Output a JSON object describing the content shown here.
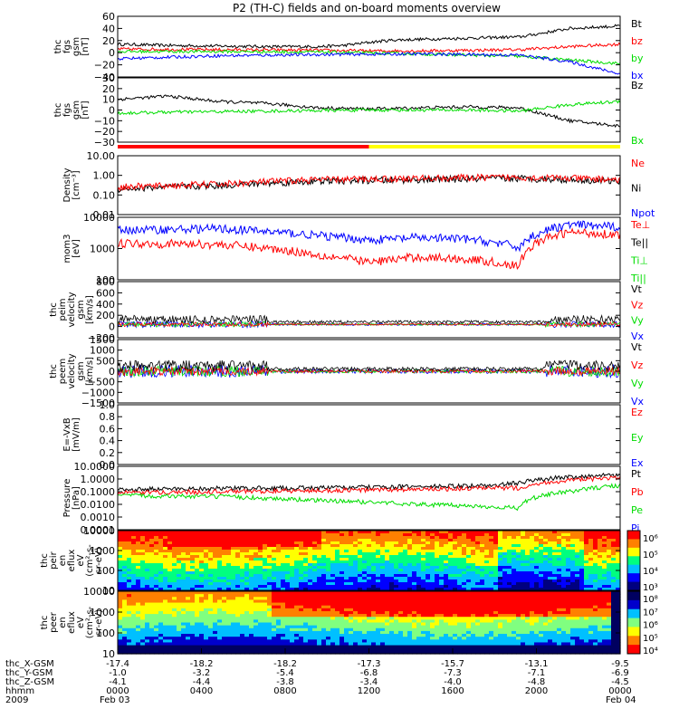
{
  "title": "P2 (TH-C) fields and on-board moments overview",
  "colors": {
    "black": "#000000",
    "red": "#ff0000",
    "green": "#00dd00",
    "blue": "#0000ff",
    "yellow": "#ffff00"
  },
  "chart_data": [
    {
      "id": "fgs-gsm",
      "type": "line",
      "ylabel": [
        "thc",
        "fgs",
        "gsm",
        "[nT]"
      ],
      "yticks": [
        "60",
        "40",
        "20",
        "0",
        "−20",
        "−40"
      ],
      "ylim": [
        -40,
        60
      ],
      "legend": [
        {
          "text": "Bt",
          "color": "#000000"
        },
        {
          "text": "bz",
          "color": "#ff0000"
        },
        {
          "text": "by",
          "color": "#00dd00"
        },
        {
          "text": "bx",
          "color": "#0000ff"
        }
      ],
      "series": [
        {
          "name": "Bt",
          "color": "#000000",
          "x": [
            0,
            0.1,
            0.2,
            0.3,
            0.4,
            0.45,
            0.5,
            0.55,
            0.6,
            0.7,
            0.8,
            0.85,
            0.9,
            1.0
          ],
          "y": [
            14,
            12,
            11,
            10,
            10,
            12,
            17,
            21,
            22,
            24,
            26,
            33,
            40,
            44
          ]
        },
        {
          "name": "bz",
          "color": "#ff0000",
          "x": [
            0,
            0.2,
            0.4,
            0.5,
            0.6,
            0.7,
            0.8,
            0.9,
            1.0
          ],
          "y": [
            6,
            5,
            4,
            3,
            3,
            4,
            5,
            10,
            14
          ]
        },
        {
          "name": "by",
          "color": "#00dd00",
          "x": [
            0,
            0.2,
            0.4,
            0.6,
            0.7,
            0.8,
            0.9,
            1.0
          ],
          "y": [
            2,
            2,
            1,
            -2,
            -4,
            -6,
            -12,
            -18
          ]
        },
        {
          "name": "bx",
          "color": "#0000ff",
          "x": [
            0,
            0.2,
            0.4,
            0.6,
            0.8,
            0.9,
            1.0
          ],
          "y": [
            -10,
            -5,
            -3,
            -2,
            -4,
            -15,
            -35
          ]
        }
      ]
    },
    {
      "id": "fgs-sm",
      "type": "line",
      "ylabel": [
        "thc",
        "fgs",
        "gsm",
        "[nT]"
      ],
      "yticks": [
        "30",
        "20",
        "10",
        "0",
        "−10",
        "−20",
        "−30"
      ],
      "ylim": [
        -30,
        30
      ],
      "legend": [
        {
          "text": "Bz",
          "color": "#000000"
        },
        {
          "text": "Bx",
          "color": "#00dd00"
        }
      ],
      "series": [
        {
          "name": "Bz",
          "color": "#000000",
          "x": [
            0,
            0.1,
            0.2,
            0.3,
            0.4,
            0.5,
            0.7,
            0.8,
            0.9,
            1.0
          ],
          "y": [
            10,
            13,
            8,
            6,
            2,
            1,
            3,
            2,
            -10,
            -15
          ]
        },
        {
          "name": "Bx",
          "color": "#00dd00",
          "x": [
            0,
            0.1,
            0.3,
            0.5,
            0.7,
            0.8,
            0.9,
            1.0
          ],
          "y": [
            -3,
            -2,
            -1,
            0,
            0,
            -1,
            5,
            8
          ]
        }
      ]
    },
    {
      "id": "density",
      "type": "line",
      "ylabel": [
        "Density",
        "[cm⁻³]"
      ],
      "yticks": [
        "10.00",
        "1.00",
        "0.10",
        "0.01"
      ],
      "ylim": [
        0.01,
        10
      ],
      "log": true,
      "legend": [
        {
          "text": "Ne",
          "color": "#ff0000"
        },
        {
          "text": "Ni",
          "color": "#000000"
        },
        {
          "text": "Npot",
          "color": "#0000ff"
        }
      ],
      "series": [
        {
          "name": "Ni",
          "color": "#000000",
          "x": [
            0,
            0.2,
            0.4,
            0.6,
            0.8,
            1.0
          ],
          "y": [
            0.2,
            0.3,
            0.5,
            0.6,
            0.7,
            0.5
          ]
        },
        {
          "name": "Ne",
          "color": "#ff0000",
          "x": [
            0,
            0.2,
            0.4,
            0.6,
            0.8,
            1.0
          ],
          "y": [
            0.25,
            0.35,
            0.6,
            0.7,
            0.8,
            0.6
          ]
        }
      ]
    },
    {
      "id": "temperature",
      "type": "line",
      "ylabel": [
        "mom3",
        "[eV]"
      ],
      "yticks": [
        "10000",
        "1000",
        "100"
      ],
      "ylim": [
        30,
        10000
      ],
      "log": true,
      "legend": [
        {
          "text": "Te⊥",
          "color": "#ff0000"
        },
        {
          "text": "Te||",
          "color": "#000000"
        },
        {
          "text": "Ti⊥",
          "color": "#00dd00"
        },
        {
          "text": "Ti||",
          "color": "#00dd00"
        }
      ],
      "series": [
        {
          "name": "Ti",
          "color": "#0000ff",
          "x": [
            0,
            0.2,
            0.4,
            0.5,
            0.6,
            0.7,
            0.8,
            0.9,
            1.0
          ],
          "y": [
            3000,
            3500,
            1800,
            1200,
            1500,
            1300,
            600,
            5000,
            4000
          ]
        },
        {
          "name": "Te",
          "color": "#ff0000",
          "x": [
            0,
            0.2,
            0.4,
            0.5,
            0.6,
            0.7,
            0.8,
            0.9,
            1.0
          ],
          "y": [
            900,
            800,
            300,
            150,
            250,
            200,
            100,
            2500,
            2000
          ]
        }
      ]
    },
    {
      "id": "peim-velocity",
      "type": "line",
      "ylabel": [
        "thc",
        "peim",
        "velocity",
        "gsm",
        "[km/s]"
      ],
      "yticks": [
        "800",
        "600",
        "400",
        "200",
        "0",
        "−200"
      ],
      "ylim": [
        -250,
        800
      ],
      "legend": [
        {
          "text": "Vt",
          "color": "#000000"
        },
        {
          "text": "Vz",
          "color": "#ff0000"
        },
        {
          "text": "Vy",
          "color": "#00dd00"
        },
        {
          "text": "Vx",
          "color": "#0000ff"
        }
      ]
    },
    {
      "id": "peem-velocity",
      "type": "line",
      "ylabel": [
        "thc",
        "peem",
        "velocity",
        "gsm",
        "[km/s]"
      ],
      "yticks": [
        "1500",
        "1000",
        "500",
        "0",
        "−500",
        "−1000",
        "−1500"
      ],
      "ylim": [
        -1500,
        1500
      ],
      "legend": [
        {
          "text": "Vt",
          "color": "#000000"
        },
        {
          "text": "Vz",
          "color": "#ff0000"
        },
        {
          "text": "Vy",
          "color": "#00dd00"
        },
        {
          "text": "Vx",
          "color": "#0000ff"
        }
      ]
    },
    {
      "id": "efield",
      "type": "line",
      "ylabel": [
        "E=-VxB",
        "[mV/m]"
      ],
      "yticks": [
        "1.0",
        "0.8",
        "0.6",
        "0.4",
        "0.2",
        "0.0"
      ],
      "ylim": [
        0,
        1
      ],
      "legend": [
        {
          "text": "Ez",
          "color": "#ff0000"
        },
        {
          "text": "Ey",
          "color": "#00dd00"
        },
        {
          "text": "Ex",
          "color": "#0000ff"
        }
      ]
    },
    {
      "id": "pressure",
      "type": "line",
      "ylabel": [
        "Pressure",
        "[nPa]"
      ],
      "yticks": [
        "10.0000",
        "1.0000",
        "0.1000",
        "0.0100",
        "0.0010",
        "0.0001"
      ],
      "ylim": [
        0.0001,
        10
      ],
      "log": true,
      "legend": [
        {
          "text": "Pt",
          "color": "#000000"
        },
        {
          "text": "Pb",
          "color": "#ff0000"
        },
        {
          "text": "Pe",
          "color": "#00dd00"
        },
        {
          "text": "Pi",
          "color": "#0000ff"
        }
      ],
      "series": [
        {
          "name": "Pt",
          "color": "#000000",
          "x": [
            0,
            0.2,
            0.4,
            0.6,
            0.75,
            0.8,
            0.9,
            1.0
          ],
          "y": [
            0.15,
            0.18,
            0.2,
            0.25,
            0.3,
            0.5,
            1.5,
            2.0
          ]
        },
        {
          "name": "Pb",
          "color": "#ff0000",
          "x": [
            0,
            0.2,
            0.4,
            0.6,
            0.8,
            0.9,
            1.0
          ],
          "y": [
            0.08,
            0.1,
            0.12,
            0.15,
            0.2,
            0.8,
            1.2
          ]
        },
        {
          "name": "Pe",
          "color": "#00dd00",
          "x": [
            0,
            0.2,
            0.4,
            0.6,
            0.8,
            0.9,
            1.0
          ],
          "y": [
            0.05,
            0.04,
            0.02,
            0.01,
            0.005,
            0.1,
            0.3
          ]
        }
      ]
    },
    {
      "id": "peir-spectrogram",
      "type": "heatmap",
      "ylabel": [
        "thc",
        "peir",
        "en",
        "eflux",
        "eV",
        "(cm²-s-",
        "sr-eV)"
      ],
      "yticks": [
        "10000",
        "1000",
        "100",
        "10"
      ],
      "colorbar": [
        "10⁶",
        "10⁵",
        "10⁴",
        "10³"
      ]
    },
    {
      "id": "peer-spectrogram",
      "type": "heatmap",
      "ylabel": [
        "thc",
        "peer",
        "en",
        "eflux",
        "eV",
        "(cm²-s-",
        "sr-eV)"
      ],
      "yticks": [
        "10000",
        "1000",
        "100",
        "10"
      ],
      "colorbar": [
        "10⁸",
        "10⁷",
        "10⁶",
        "10⁵",
        "10⁴"
      ]
    }
  ],
  "x_axis": {
    "rows": [
      {
        "label": "thc_X-GSM",
        "values": [
          "-17.4",
          "-18.2",
          "-18.2",
          "-17.3",
          "-15.7",
          "-13.1",
          "-9.5"
        ]
      },
      {
        "label": "thc_Y-GSM",
        "values": [
          "-1.0",
          "-3.2",
          "-5.4",
          "-6.8",
          "-7.3",
          "-7.1",
          "-6.9"
        ]
      },
      {
        "label": "thc_Z-GSM",
        "values": [
          "-4.1",
          "-4.4",
          "-3.8",
          "-3.4",
          "-4.0",
          "-4.8",
          "-4.5"
        ]
      },
      {
        "label": "hhmm",
        "values": [
          "0000",
          "0400",
          "0800",
          "1200",
          "1600",
          "2000",
          "0000"
        ]
      }
    ],
    "year": "2009",
    "start_date": "Feb 03",
    "end_date": "Feb 04"
  }
}
